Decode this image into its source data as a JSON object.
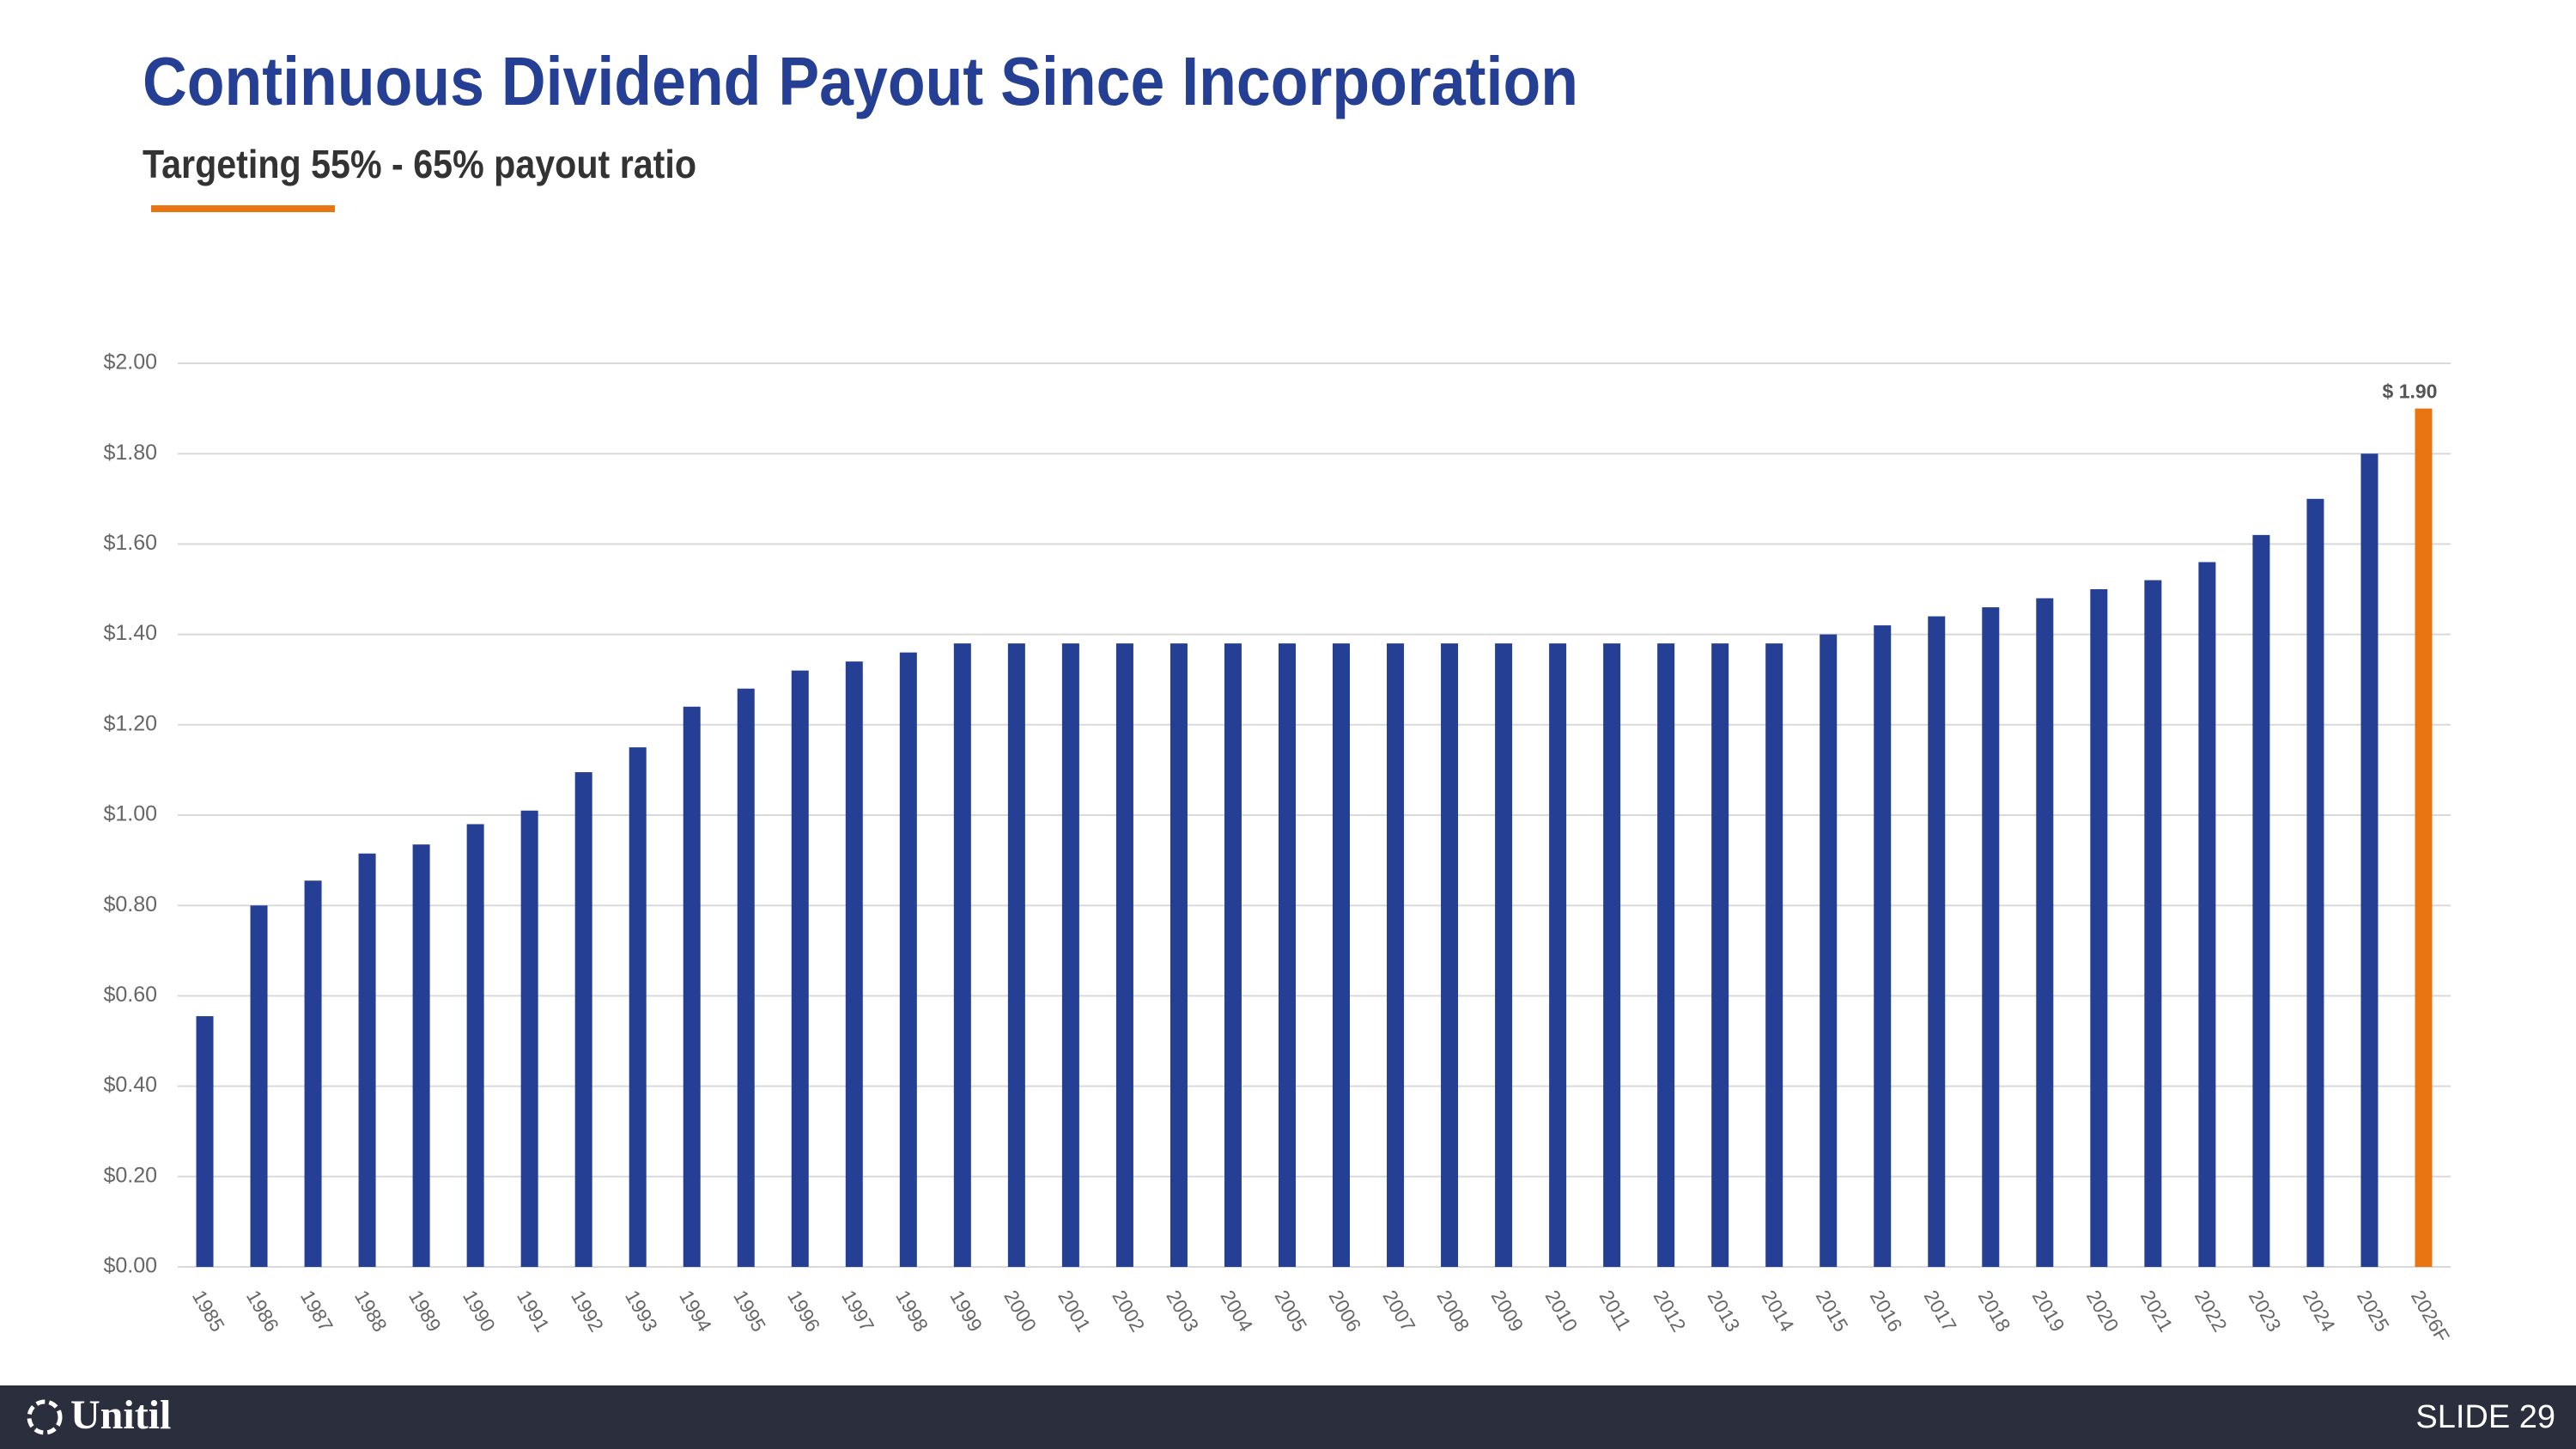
{
  "header": {
    "title": "Continuous Dividend Payout Since Incorporation",
    "subtitle": "Targeting 55% - 65% payout ratio"
  },
  "chart_data": {
    "type": "bar",
    "categories": [
      "1985",
      "1986",
      "1987",
      "1988",
      "1989",
      "1990",
      "1991",
      "1992",
      "1993",
      "1994",
      "1995",
      "1996",
      "1997",
      "1998",
      "1999",
      "2000",
      "2001",
      "2002",
      "2003",
      "2004",
      "2005",
      "2006",
      "2007",
      "2008",
      "2009",
      "2010",
      "2011",
      "2012",
      "2013",
      "2014",
      "2015",
      "2016",
      "2017",
      "2018",
      "2019",
      "2020",
      "2021",
      "2022",
      "2023",
      "2024",
      "2025",
      "2026F"
    ],
    "values": [
      0.555,
      0.8,
      0.855,
      0.915,
      0.935,
      0.98,
      1.01,
      1.095,
      1.15,
      1.24,
      1.28,
      1.32,
      1.34,
      1.36,
      1.38,
      1.38,
      1.38,
      1.38,
      1.38,
      1.38,
      1.38,
      1.38,
      1.38,
      1.38,
      1.38,
      1.38,
      1.38,
      1.38,
      1.38,
      1.38,
      1.4,
      1.42,
      1.44,
      1.46,
      1.48,
      1.5,
      1.52,
      1.56,
      1.62,
      1.7,
      1.8,
      1.9
    ],
    "value_labels": [
      null,
      null,
      null,
      null,
      null,
      null,
      null,
      null,
      null,
      null,
      null,
      null,
      null,
      null,
      null,
      null,
      null,
      null,
      null,
      null,
      null,
      null,
      null,
      null,
      null,
      null,
      null,
      null,
      null,
      null,
      null,
      null,
      null,
      null,
      null,
      null,
      null,
      null,
      null,
      null,
      null,
      "$ 1.90"
    ],
    "colors": [
      "#253f94",
      "#253f94",
      "#253f94",
      "#253f94",
      "#253f94",
      "#253f94",
      "#253f94",
      "#253f94",
      "#253f94",
      "#253f94",
      "#253f94",
      "#253f94",
      "#253f94",
      "#253f94",
      "#253f94",
      "#253f94",
      "#253f94",
      "#253f94",
      "#253f94",
      "#253f94",
      "#253f94",
      "#253f94",
      "#253f94",
      "#253f94",
      "#253f94",
      "#253f94",
      "#253f94",
      "#253f94",
      "#253f94",
      "#253f94",
      "#253f94",
      "#253f94",
      "#253f94",
      "#253f94",
      "#253f94",
      "#253f94",
      "#253f94",
      "#253f94",
      "#253f94",
      "#253f94",
      "#253f94",
      "#e87511"
    ],
    "ylim": [
      0,
      2
    ],
    "yticks": [
      {
        "value": 0,
        "label": "$0.00"
      },
      {
        "value": 0.2,
        "label": "$0.20"
      },
      {
        "value": 0.4,
        "label": "$0.40"
      },
      {
        "value": 0.6,
        "label": "$0.60"
      },
      {
        "value": 0.8,
        "label": "$0.80"
      },
      {
        "value": 1,
        "label": "$1.00"
      },
      {
        "value": 1.2,
        "label": "$1.20"
      },
      {
        "value": 1.4,
        "label": "$1.40"
      },
      {
        "value": 1.6,
        "label": "$1.60"
      },
      {
        "value": 1.8,
        "label": "$1.80"
      },
      {
        "value": 2,
        "label": "$2.00"
      }
    ],
    "grid": true
  },
  "footer": {
    "logo": "Unitil",
    "slide": "SLIDE 29"
  }
}
